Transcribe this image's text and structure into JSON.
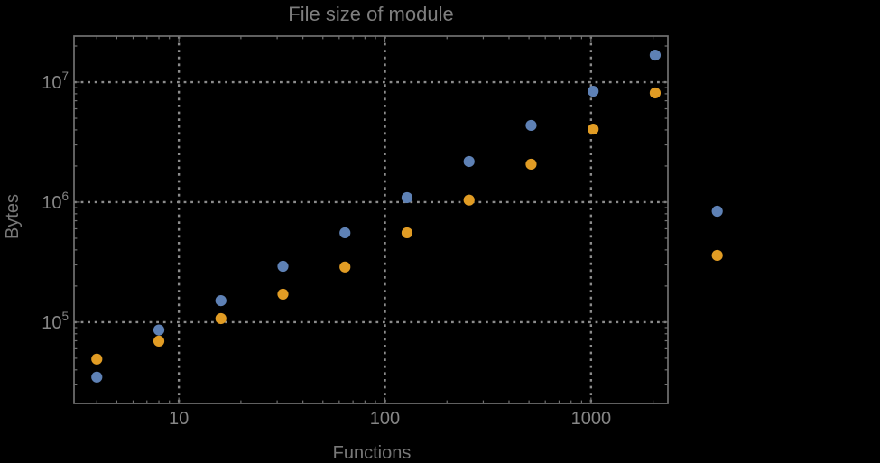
{
  "colors": {
    "background": "#000000",
    "frame": "#717171",
    "grid": "#8c8c8c",
    "text": "#7e7e7e",
    "series_blue": "#5E81B5",
    "series_orange": "#E19C24"
  },
  "chart_data": {
    "type": "scatter",
    "title": "File size of module",
    "xlabel": "Functions",
    "ylabel": "Bytes",
    "xscale": "log",
    "yscale": "log",
    "xlim": [
      3.1,
      2360
    ],
    "ylim": [
      21000,
      24200000
    ],
    "grid": "dotted",
    "legend": "none",
    "x_major_ticks": [
      10,
      100,
      1000
    ],
    "x_major_labels": [
      "10",
      "100",
      "1000"
    ],
    "y_major_ticks": [
      100000,
      1000000,
      10000000
    ],
    "y_major_label_base": "10",
    "y_major_label_exponents": [
      "5",
      "6",
      "7"
    ],
    "series": [
      {
        "name": "blue-series",
        "color": "#5E81B5",
        "x": [
          4,
          8,
          16,
          32,
          64,
          128,
          256,
          512,
          1024,
          2048,
          4096
        ],
        "y": [
          34800,
          86000,
          151000,
          292000,
          555000,
          1090000,
          2180000,
          4360000,
          8400000,
          16800000,
          840000
        ]
      },
      {
        "name": "orange-series",
        "color": "#E19C24",
        "x": [
          4,
          8,
          16,
          32,
          64,
          128,
          256,
          512,
          1024,
          2048,
          4096
        ],
        "y": [
          49200,
          69500,
          107000,
          171000,
          288000,
          555000,
          1040000,
          2070000,
          4060000,
          8130000,
          360000
        ]
      }
    ]
  }
}
